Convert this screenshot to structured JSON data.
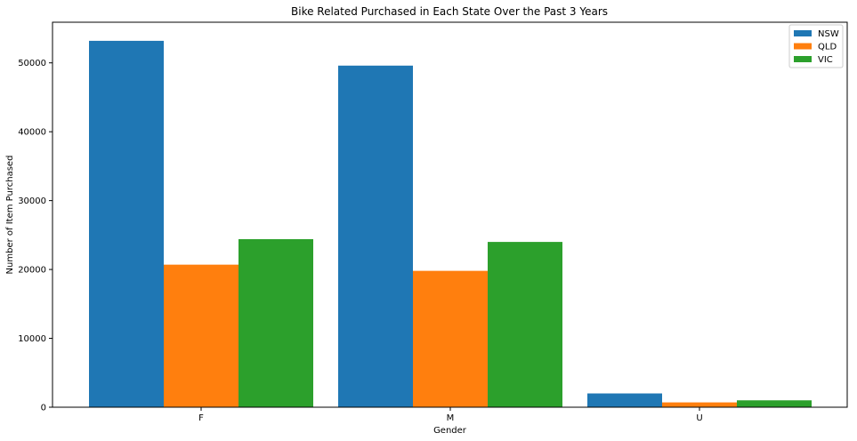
{
  "chart_data": {
    "type": "bar",
    "title": "Bike Related Purchased in Each State Over the Past 3 Years",
    "xlabel": "Gender",
    "ylabel": "Number of Item Purchased",
    "categories": [
      "F",
      "M",
      "U"
    ],
    "series": [
      {
        "name": "NSW",
        "color": "#1f77b4",
        "values": [
          53200,
          49600,
          2000
        ]
      },
      {
        "name": "QLD",
        "color": "#ff7f0e",
        "values": [
          20700,
          19800,
          700
        ]
      },
      {
        "name": "VIC",
        "color": "#2ca02c",
        "values": [
          24400,
          24000,
          1000
        ]
      }
    ],
    "ylim": [
      0,
      55900
    ],
    "yticks": [
      0,
      10000,
      20000,
      30000,
      40000,
      50000
    ],
    "legend_position": "top-right",
    "grid": false
  }
}
